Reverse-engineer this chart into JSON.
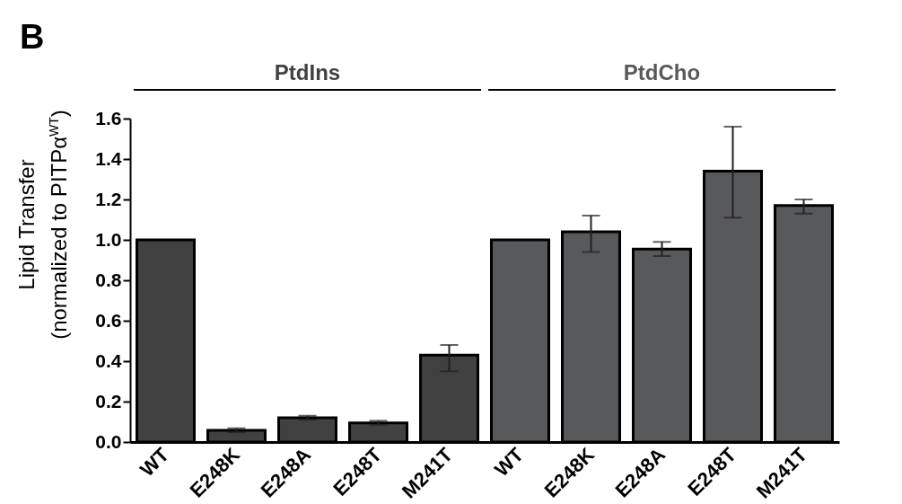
{
  "chart_data": {
    "type": "bar",
    "ylabel": "Lipid Transfer\n(normalized to PITPα$^{WT}$)",
    "annotations": [
      "B"
    ],
    "categories": [
      "WT",
      "E248K",
      "E248A",
      "E248T",
      "M241T",
      "WT",
      "E248K",
      "E248A",
      "E248T",
      "M241T"
    ],
    "series": [
      {
        "name": "PtdIns",
        "color": "#414141",
        "values": [
          1.0,
          0.058,
          0.12,
          0.095,
          0.43,
          null,
          null,
          null,
          null,
          null
        ],
        "errors": [
          null,
          0.01,
          0.01,
          0.01,
          [
            0.35,
            0.48
          ],
          null,
          null,
          null,
          null,
          null
        ]
      },
      {
        "name": "PtdCho",
        "color": "#58595b",
        "values": [
          null,
          null,
          null,
          null,
          null,
          1.0,
          1.04,
          0.955,
          1.34,
          1.17
        ],
        "errors": [
          null,
          null,
          null,
          null,
          null,
          null,
          [
            0.94,
            1.12
          ],
          [
            0.92,
            0.99
          ],
          [
            1.11,
            1.56
          ],
          [
            1.13,
            1.2
          ]
        ]
      }
    ],
    "ylim": [
      0,
      1.6
    ],
    "yticks": [
      {
        "value": 0,
        "label": "0.0"
      },
      {
        "value": 0.2,
        "label": "0.2"
      },
      {
        "value": 0.4,
        "label": "0.4"
      },
      {
        "value": 0.6,
        "label": "0.6"
      },
      {
        "value": 0.8,
        "label": "0.8"
      },
      {
        "value": 1.0,
        "label": "1.0"
      },
      {
        "value": 1.2,
        "label": "1.2"
      },
      {
        "value": 1.4,
        "label": "1.4"
      },
      {
        "value": 1.6,
        "label": "1.6"
      }
    ],
    "grid": false,
    "legend": false
  }
}
